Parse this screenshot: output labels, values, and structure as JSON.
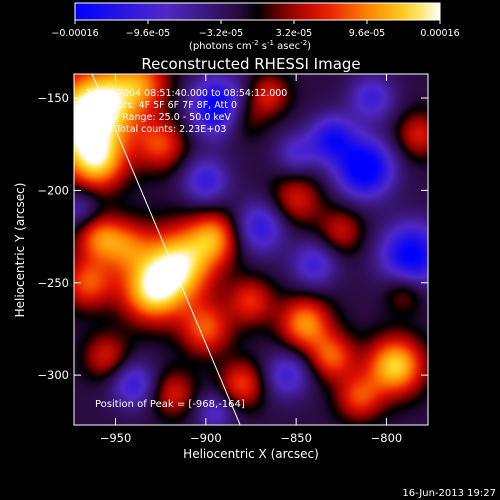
{
  "chart_data": {
    "type": "heatmap",
    "title": "Reconstructed RHESSI Image",
    "xlabel": "Heliocentric X (arcsec)",
    "ylabel": "Heliocentric Y (arcsec)",
    "xlim": [
      -973,
      -777
    ],
    "ylim": [
      -327,
      -137
    ],
    "x_ticks": [
      -950,
      -900,
      -850,
      -800
    ],
    "y_ticks": [
      -150,
      -200,
      -250,
      -300
    ],
    "colorbar": {
      "min": -0.00016,
      "max": 0.00016,
      "tick_values": [
        -0.00016,
        -9.6e-05,
        -3.2e-05,
        3.2e-05,
        9.6e-05,
        0.00016
      ],
      "tick_labels": [
        "-0.00016",
        "-9.6e-05",
        "-3.2e-05",
        "3.2e-05",
        "9.6e-05",
        "0.00016"
      ],
      "unit_label": "(photons cm",
      "unit_exp1": "-2",
      "unit_mid": " s",
      "unit_exp2": "-1",
      "unit_mid2": " asec",
      "unit_exp3": "-2",
      "unit_end": ")"
    },
    "info_lines": [
      "18-Jul-2004 08:51:40.000 to 08:54:12.000",
      "Detectors: 4F 5F 6F 7F 8F, Att 0",
      "Energy Range: 25.0 - 50.0 keV",
      "Clean    Total counts: 2.23E+03"
    ],
    "peak_label": "Position of Peak = [-968,-164]",
    "limb_line": [
      [
        -963,
        -137
      ],
      [
        -881,
        -327
      ]
    ],
    "sources": [
      {
        "x": -968,
        "y": -164,
        "amp": 1.0,
        "sigma": 16
      },
      {
        "x": -955,
        "y": -150,
        "amp": 0.65,
        "sigma": 14
      },
      {
        "x": -935,
        "y": -142,
        "amp": 0.55,
        "sigma": 11
      },
      {
        "x": -960,
        "y": -185,
        "amp": 0.7,
        "sigma": 11
      },
      {
        "x": -925,
        "y": -175,
        "amp": 0.55,
        "sigma": 10
      },
      {
        "x": -915,
        "y": -240,
        "amp": 1.0,
        "sigma": 14
      },
      {
        "x": -930,
        "y": -255,
        "amp": 0.85,
        "sigma": 12
      },
      {
        "x": -895,
        "y": -225,
        "amp": 0.65,
        "sigma": 10
      },
      {
        "x": -945,
        "y": -230,
        "amp": 0.55,
        "sigma": 10
      },
      {
        "x": -965,
        "y": -250,
        "amp": 0.6,
        "sigma": 10
      },
      {
        "x": -960,
        "y": -225,
        "amp": 0.55,
        "sigma": 9
      },
      {
        "x": -900,
        "y": -275,
        "amp": 0.6,
        "sigma": 10
      },
      {
        "x": -875,
        "y": -260,
        "amp": 0.5,
        "sigma": 9
      },
      {
        "x": -845,
        "y": -272,
        "amp": 0.75,
        "sigma": 10
      },
      {
        "x": -830,
        "y": -290,
        "amp": 0.6,
        "sigma": 9
      },
      {
        "x": -795,
        "y": -295,
        "amp": 0.95,
        "sigma": 11
      },
      {
        "x": -815,
        "y": -312,
        "amp": 0.55,
        "sigma": 9
      },
      {
        "x": -880,
        "y": -305,
        "amp": 0.55,
        "sigma": 9
      },
      {
        "x": -918,
        "y": -310,
        "amp": 0.45,
        "sigma": 9
      },
      {
        "x": -955,
        "y": -290,
        "amp": 0.45,
        "sigma": 9
      },
      {
        "x": -850,
        "y": -205,
        "amp": 0.45,
        "sigma": 10
      },
      {
        "x": -825,
        "y": -222,
        "amp": 0.4,
        "sigma": 9
      },
      {
        "x": -880,
        "y": -160,
        "amp": 0.4,
        "sigma": 9
      },
      {
        "x": -865,
        "y": -148,
        "amp": 0.45,
        "sigma": 8
      },
      {
        "x": -782,
        "y": -170,
        "amp": 0.45,
        "sigma": 9
      },
      {
        "x": -790,
        "y": -255,
        "amp": 0.35,
        "sigma": 8
      },
      {
        "x": -893,
        "y": -155,
        "amp": -0.95,
        "sigma": 11
      },
      {
        "x": -812,
        "y": -188,
        "amp": -1.0,
        "sigma": 11
      },
      {
        "x": -830,
        "y": -172,
        "amp": -0.7,
        "sigma": 9
      },
      {
        "x": -786,
        "y": -235,
        "amp": -0.9,
        "sigma": 12
      },
      {
        "x": -900,
        "y": -195,
        "amp": -0.55,
        "sigma": 9
      },
      {
        "x": -870,
        "y": -220,
        "amp": -0.6,
        "sigma": 10
      },
      {
        "x": -840,
        "y": -240,
        "amp": -0.5,
        "sigma": 9
      },
      {
        "x": -940,
        "y": -305,
        "amp": -0.55,
        "sigma": 9
      },
      {
        "x": -855,
        "y": -300,
        "amp": -0.5,
        "sigma": 9
      },
      {
        "x": -895,
        "y": -320,
        "amp": -0.4,
        "sigma": 8
      },
      {
        "x": -808,
        "y": -150,
        "amp": -0.5,
        "sigma": 9
      },
      {
        "x": -970,
        "y": -210,
        "amp": -0.35,
        "sigma": 8
      },
      {
        "x": -850,
        "y": -180,
        "amp": -0.4,
        "sigma": 8
      }
    ],
    "background_level": -0.12
  },
  "timestamp": "16-Jun-2013 19:27",
  "colors": {
    "background": "#000000",
    "foreground": "#ffffff"
  }
}
